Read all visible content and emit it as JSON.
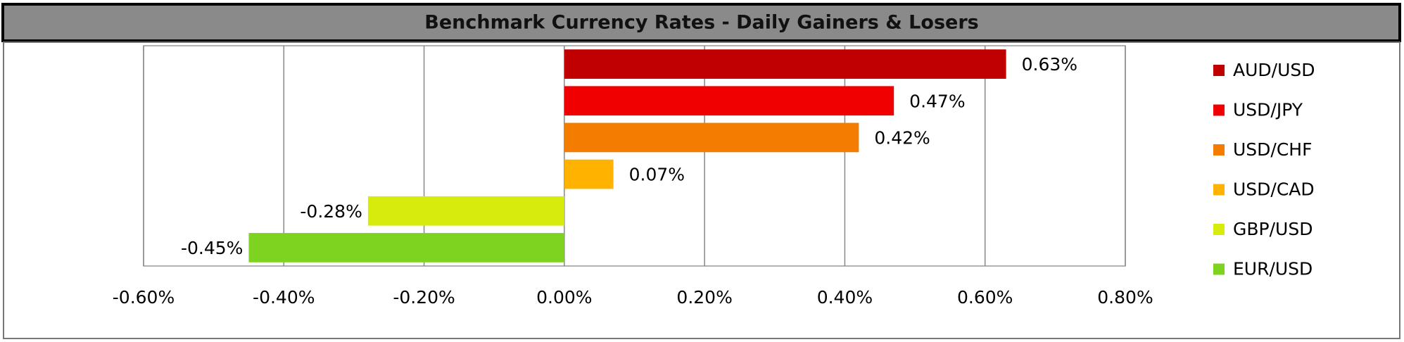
{
  "chart_data": {
    "type": "hbar",
    "title": "Benchmark Currency Rates - Daily Gainers & Losers",
    "categories": [
      "AUD/USD",
      "USD/JPY",
      "USD/CHF",
      "USD/CAD",
      "GBP/USD",
      "EUR/USD"
    ],
    "values": [
      0.63,
      0.47,
      0.42,
      0.07,
      -0.28,
      -0.45
    ],
    "value_labels": [
      "0.63%",
      "0.47%",
      "0.42%",
      "0.07%",
      "-0.28%",
      "-0.45%"
    ],
    "colors": [
      "#c00000",
      "#f00000",
      "#f47c00",
      "#ffb300",
      "#d7eb0c",
      "#7ed321"
    ],
    "xlim": [
      -0.6,
      0.8
    ],
    "xticks": [
      {
        "value": -0.6,
        "label": "-0.60%"
      },
      {
        "value": -0.4,
        "label": "-0.40%"
      },
      {
        "value": -0.2,
        "label": "-0.20%"
      },
      {
        "value": 0,
        "label": "0.00%"
      },
      {
        "value": 0.2,
        "label": "0.20%"
      },
      {
        "value": 0.4,
        "label": "0.40%"
      },
      {
        "value": 0.6,
        "label": "0.60%"
      },
      {
        "value": 0.8,
        "label": "0.80%"
      }
    ],
    "grid": true,
    "legend": "right"
  }
}
